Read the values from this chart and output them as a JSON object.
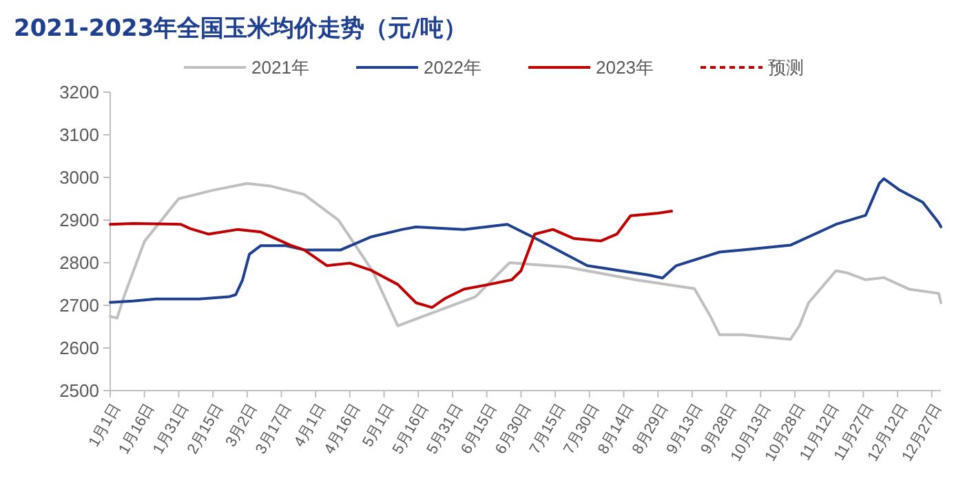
{
  "chart_data": {
    "type": "line",
    "title": "2021-2023年全国玉米均价走势（元/吨）",
    "legend": "top",
    "grid": false,
    "marker": "none",
    "xlim": [
      "--01-01",
      "--12-31"
    ],
    "ylim": [
      2500,
      3200
    ],
    "yticks": [
      2500,
      2600,
      2700,
      2800,
      2900,
      3000,
      3100,
      3200
    ],
    "xticks": [
      {
        "value": "--01-01",
        "label": "1月1日"
      },
      {
        "value": "--01-16",
        "label": "1月16日"
      },
      {
        "value": "--01-31",
        "label": "1月31日"
      },
      {
        "value": "--02-15",
        "label": "2月15日"
      },
      {
        "value": "--03-02",
        "label": "3月2日"
      },
      {
        "value": "--03-17",
        "label": "3月17日"
      },
      {
        "value": "--04-01",
        "label": "4月1日"
      },
      {
        "value": "--04-16",
        "label": "4月16日"
      },
      {
        "value": "--05-01",
        "label": "5月1日"
      },
      {
        "value": "--05-16",
        "label": "5月16日"
      },
      {
        "value": "--05-31",
        "label": "5月31日"
      },
      {
        "value": "--06-15",
        "label": "6月15日"
      },
      {
        "value": "--06-30",
        "label": "6月30日"
      },
      {
        "value": "--07-15",
        "label": "7月15日"
      },
      {
        "value": "--07-30",
        "label": "7月30日"
      },
      {
        "value": "--08-14",
        "label": "8月14日"
      },
      {
        "value": "--08-29",
        "label": "8月29日"
      },
      {
        "value": "--09-13",
        "label": "9月13日"
      },
      {
        "value": "--09-28",
        "label": "9月28日"
      },
      {
        "value": "--10-13",
        "label": "10月13日"
      },
      {
        "value": "--10-28",
        "label": "10月28日"
      },
      {
        "value": "--11-12",
        "label": "11月12日"
      },
      {
        "value": "--11-27",
        "label": "11月27日"
      },
      {
        "value": "--12-12",
        "label": "12月12日"
      },
      {
        "value": "--12-27",
        "label": "12月27日"
      }
    ],
    "series": [
      {
        "name": "2021年",
        "color": "#bfbfbf",
        "line_style": "solid",
        "x": [
          "--01-01",
          "--01-04",
          "--01-07",
          "--01-16",
          "--01-31",
          "--02-15",
          "--03-02",
          "--03-12",
          "--03-27",
          "--04-11",
          "--04-26",
          "--05-07",
          "--05-21",
          "--06-10",
          "--06-25",
          "--07-20",
          "--08-19",
          "--09-14",
          "--09-21",
          "--09-25",
          "--10-05",
          "--10-26",
          "--10-30",
          "--11-03",
          "--11-15",
          "--11-20",
          "--11-28",
          "--12-06",
          "--12-17",
          "--12-30",
          "--12-31"
        ],
        "values": [
          2674,
          2670,
          2720,
          2850,
          2950,
          2970,
          2986,
          2980,
          2960,
          2900,
          2780,
          2652,
          2680,
          2720,
          2800,
          2790,
          2760,
          2739,
          2674,
          2631,
          2631,
          2620,
          2652,
          2706,
          2781,
          2776,
          2760,
          2765,
          2738,
          2728,
          2706
        ]
      },
      {
        "name": "2022年",
        "color": "#1f3f8f",
        "line_style": "solid",
        "x": [
          "--01-01",
          "--01-11",
          "--01-21",
          "--02-09",
          "--02-22",
          "--02-25",
          "--02-28",
          "--03-03",
          "--03-08",
          "--03-19",
          "--03-27",
          "--04-12",
          "--04-25",
          "--05-09",
          "--05-15",
          "--06-05",
          "--06-24",
          "--07-06",
          "--07-29",
          "--08-25",
          "--08-31",
          "--09-06",
          "--09-25",
          "--10-05",
          "--10-26",
          "--11-15",
          "--11-28",
          "--12-04",
          "--12-06",
          "--12-13",
          "--12-23",
          "--12-30",
          "--12-31"
        ],
        "values": [
          2707,
          2710,
          2715,
          2715,
          2720,
          2725,
          2760,
          2820,
          2840,
          2840,
          2830,
          2830,
          2860,
          2878,
          2884,
          2878,
          2890,
          2858,
          2793,
          2771,
          2764,
          2793,
          2825,
          2830,
          2841,
          2890,
          2911,
          2986,
          2997,
          2970,
          2942,
          2894,
          2884
        ]
      },
      {
        "name": "2023年",
        "color": "#c00000",
        "line_style": "solid",
        "x": [
          "--01-01",
          "--01-11",
          "--02-01",
          "--02-05",
          "--02-13",
          "--02-26",
          "--03-08",
          "--03-21",
          "--03-27",
          "--04-06",
          "--04-16",
          "--04-25",
          "--05-07",
          "--05-15",
          "--05-22",
          "--05-28",
          "--06-05",
          "--06-16",
          "--06-26",
          "--06-30",
          "--07-06",
          "--07-14",
          "--07-23",
          "--08-04",
          "--08-11",
          "--08-17",
          "--08-29",
          "--09-04"
        ],
        "values": [
          2890,
          2892,
          2890,
          2880,
          2867,
          2878,
          2872,
          2841,
          2830,
          2793,
          2799,
          2783,
          2749,
          2706,
          2695,
          2717,
          2738,
          2749,
          2760,
          2781,
          2867,
          2878,
          2857,
          2851,
          2867,
          2910,
          2916,
          2921
        ]
      },
      {
        "name": "预测",
        "color": "#c00000",
        "line_style": "dashed"
      }
    ]
  }
}
